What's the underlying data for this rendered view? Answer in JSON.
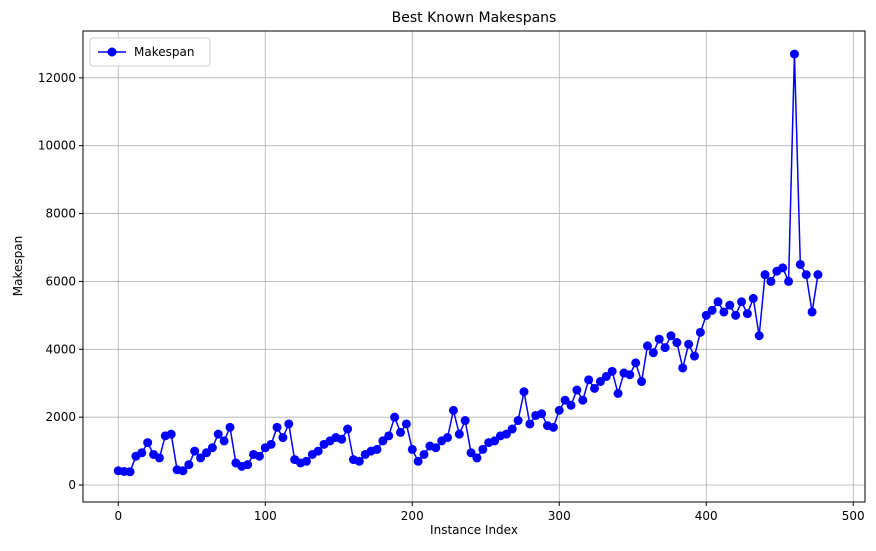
{
  "chart_data": {
    "type": "line",
    "title": "Best Known Makespans",
    "x_label": "Instance Index",
    "y_label": "Makespan",
    "x": [
      0,
      4,
      8,
      12,
      16,
      20,
      24,
      28,
      32,
      36,
      40,
      44,
      48,
      52,
      56,
      60,
      64,
      68,
      72,
      76,
      80,
      84,
      88,
      92,
      96,
      100,
      104,
      108,
      112,
      116,
      120,
      124,
      128,
      132,
      136,
      140,
      144,
      148,
      152,
      156,
      160,
      164,
      168,
      172,
      176,
      180,
      184,
      188,
      192,
      196,
      200,
      204,
      208,
      212,
      216,
      220,
      224,
      228,
      232,
      236,
      240,
      244,
      248,
      252,
      256,
      260,
      264,
      268,
      272,
      276,
      280,
      284,
      288,
      292,
      296,
      300,
      304,
      308,
      312,
      316,
      320,
      324,
      328,
      332,
      336,
      340,
      344,
      348,
      352,
      356,
      360,
      364,
      368,
      372,
      376,
      380,
      384,
      388,
      392,
      396,
      400,
      404,
      408,
      412,
      416,
      420,
      424,
      428,
      432,
      436,
      440,
      444,
      448,
      452,
      456,
      460,
      464,
      468,
      472,
      476
    ],
    "series": [
      {
        "name": "Makespan",
        "color": "#0000ff",
        "values": [
          420,
          400,
          390,
          850,
          950,
          1250,
          900,
          800,
          1450,
          1500,
          450,
          420,
          600,
          1000,
          800,
          950,
          1100,
          1500,
          1300,
          1700,
          650,
          550,
          600,
          900,
          850,
          1100,
          1200,
          1700,
          1400,
          1800,
          750,
          650,
          700,
          900,
          1000,
          1200,
          1300,
          1400,
          1350,
          1650,
          750,
          700,
          900,
          1000,
          1050,
          1300,
          1450,
          2000,
          1550,
          1800,
          1050,
          700,
          900,
          1150,
          1100,
          1300,
          1400,
          2200,
          1500,
          1900,
          950,
          800,
          1050,
          1250,
          1300,
          1450,
          1500,
          1650,
          1900,
          2750,
          1800,
          2050,
          2100,
          1750,
          1700,
          2200,
          2500,
          2350,
          2800,
          2500,
          3100,
          2850,
          3050,
          3200,
          3350,
          2700,
          3300,
          3250,
          3600,
          3050,
          4100,
          3900,
          4300,
          4050,
          4400,
          4200,
          3450,
          4150,
          3800,
          4500,
          5000,
          5150,
          5400,
          5100,
          5300,
          5000,
          5400,
          5050,
          5500,
          4400,
          6200,
          6000,
          6300,
          6400,
          6000,
          12700,
          6500,
          6200,
          5100,
          6200
        ]
      }
    ],
    "xlim": [
      -24,
      508
    ],
    "ylim": [
      -500,
      13380
    ],
    "xticks": [
      0,
      100,
      200,
      300,
      400,
      500
    ],
    "yticks": [
      0,
      2000,
      4000,
      6000,
      8000,
      10000,
      12000
    ],
    "grid": true,
    "legend": "upper-left"
  }
}
